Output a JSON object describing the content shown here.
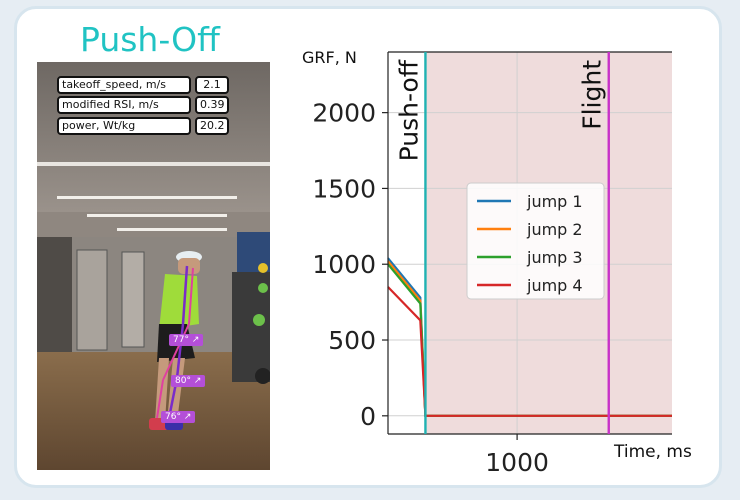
{
  "panel": {
    "title": "Push-Off",
    "metrics": [
      {
        "label": "takeoff_speed, m/s",
        "value": "2.1"
      },
      {
        "label": "modified RSI, m/s",
        "value": "0.39"
      },
      {
        "label": "power, Wt/kg",
        "value": "20.2"
      }
    ],
    "angles": [
      "77° ↗",
      "80° ↗",
      "76° ↗"
    ]
  },
  "chart_data": {
    "type": "line",
    "ylabel": "GRF, N",
    "xlabel": "Time, ms",
    "yticks": [
      "0",
      "500",
      "1000",
      "1500",
      "2000"
    ],
    "xticks": [
      "1000"
    ],
    "ylim": [
      -120,
      2400
    ],
    "xlim": [
      0,
      2200
    ],
    "grid": true,
    "legend_position": "center-right",
    "phases": [
      {
        "label": "Push-off",
        "x": 290,
        "color": "#20b2b2"
      },
      {
        "label": "Flight",
        "x": 1710,
        "color": "#c832c8"
      }
    ],
    "shaded_region": {
      "x0": 290,
      "x1": 2200,
      "color": "#efdcdc"
    },
    "series": [
      {
        "name": "jump 1",
        "color": "#1f77b4",
        "x": [
          0,
          250,
          290,
          2200
        ],
        "y": [
          1040,
          780,
          0,
          0
        ]
      },
      {
        "name": "jump 2",
        "color": "#ff7f0e",
        "x": [
          0,
          250,
          290,
          2200
        ],
        "y": [
          1020,
          760,
          0,
          0
        ]
      },
      {
        "name": "jump 3",
        "color": "#2ca02c",
        "x": [
          0,
          250,
          290,
          2200
        ],
        "y": [
          1000,
          740,
          0,
          0
        ]
      },
      {
        "name": "jump 4",
        "color": "#d62728",
        "x": [
          0,
          250,
          290,
          2200
        ],
        "y": [
          850,
          630,
          0,
          0
        ]
      }
    ]
  }
}
